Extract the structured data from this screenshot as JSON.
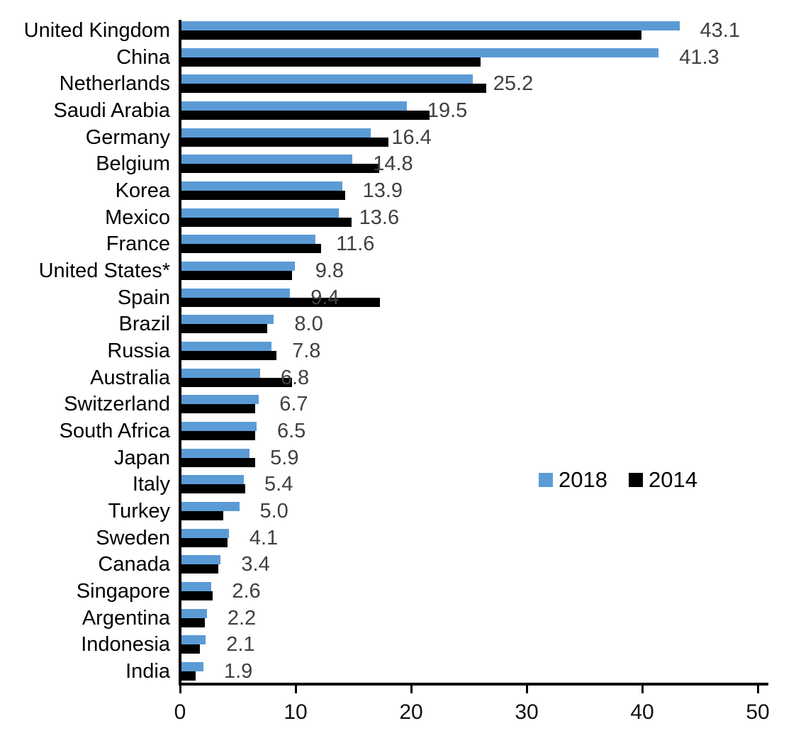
{
  "chart_data": {
    "type": "bar",
    "orientation": "horizontal",
    "title": "",
    "xlabel": "",
    "ylabel": "",
    "xlim": [
      0,
      50
    ],
    "xtick_labels": [
      "0",
      "10",
      "20",
      "30",
      "40",
      "50"
    ],
    "xtick_values": [
      0,
      10,
      20,
      30,
      40,
      50
    ],
    "grid": false,
    "legend_position": "middle-right",
    "categories": [
      "United Kingdom",
      "China",
      "Netherlands",
      "Saudi Arabia",
      "Germany",
      "Belgium",
      "Korea",
      "Mexico",
      "France",
      "United States*",
      "Spain",
      "Brazil",
      "Russia",
      "Australia",
      "Switzerland",
      "South Africa",
      "Japan",
      "Italy",
      "Turkey",
      "Sweden",
      "Canada",
      "Singapore",
      "Argentina",
      "Indonesia",
      "India"
    ],
    "series": [
      {
        "name": "2018",
        "color": "#5B9BD5",
        "values": [
          43.1,
          41.3,
          25.2,
          19.5,
          16.4,
          14.8,
          13.9,
          13.6,
          11.6,
          9.8,
          9.4,
          8.0,
          7.8,
          6.8,
          6.7,
          6.5,
          5.9,
          5.4,
          5.0,
          4.1,
          3.4,
          2.6,
          2.2,
          2.1,
          1.9
        ],
        "data_labels": [
          "43.1",
          "41.3",
          "25.2",
          "19.5",
          "16.4",
          "14.8",
          "13.9",
          "13.6",
          "11.6",
          "9.8",
          "9.4",
          "8.0",
          "7.8",
          "6.8",
          "6.7",
          "6.5",
          "5.9",
          "5.4",
          "5.0",
          "4.1",
          "3.4",
          "2.6",
          "2.2",
          "2.1",
          "1.9"
        ]
      },
      {
        "name": "2014",
        "color": "#000000",
        "values": [
          39.8,
          25.9,
          26.4,
          21.5,
          17.9,
          17.1,
          14.2,
          14.7,
          12.1,
          9.6,
          17.2,
          7.4,
          8.2,
          9.6,
          6.4,
          6.4,
          6.4,
          5.5,
          3.6,
          4.0,
          3.2,
          2.7,
          2.0,
          1.6,
          1.2
        ]
      }
    ],
    "value_label_color": "#404040",
    "axis_color": "#000000"
  }
}
